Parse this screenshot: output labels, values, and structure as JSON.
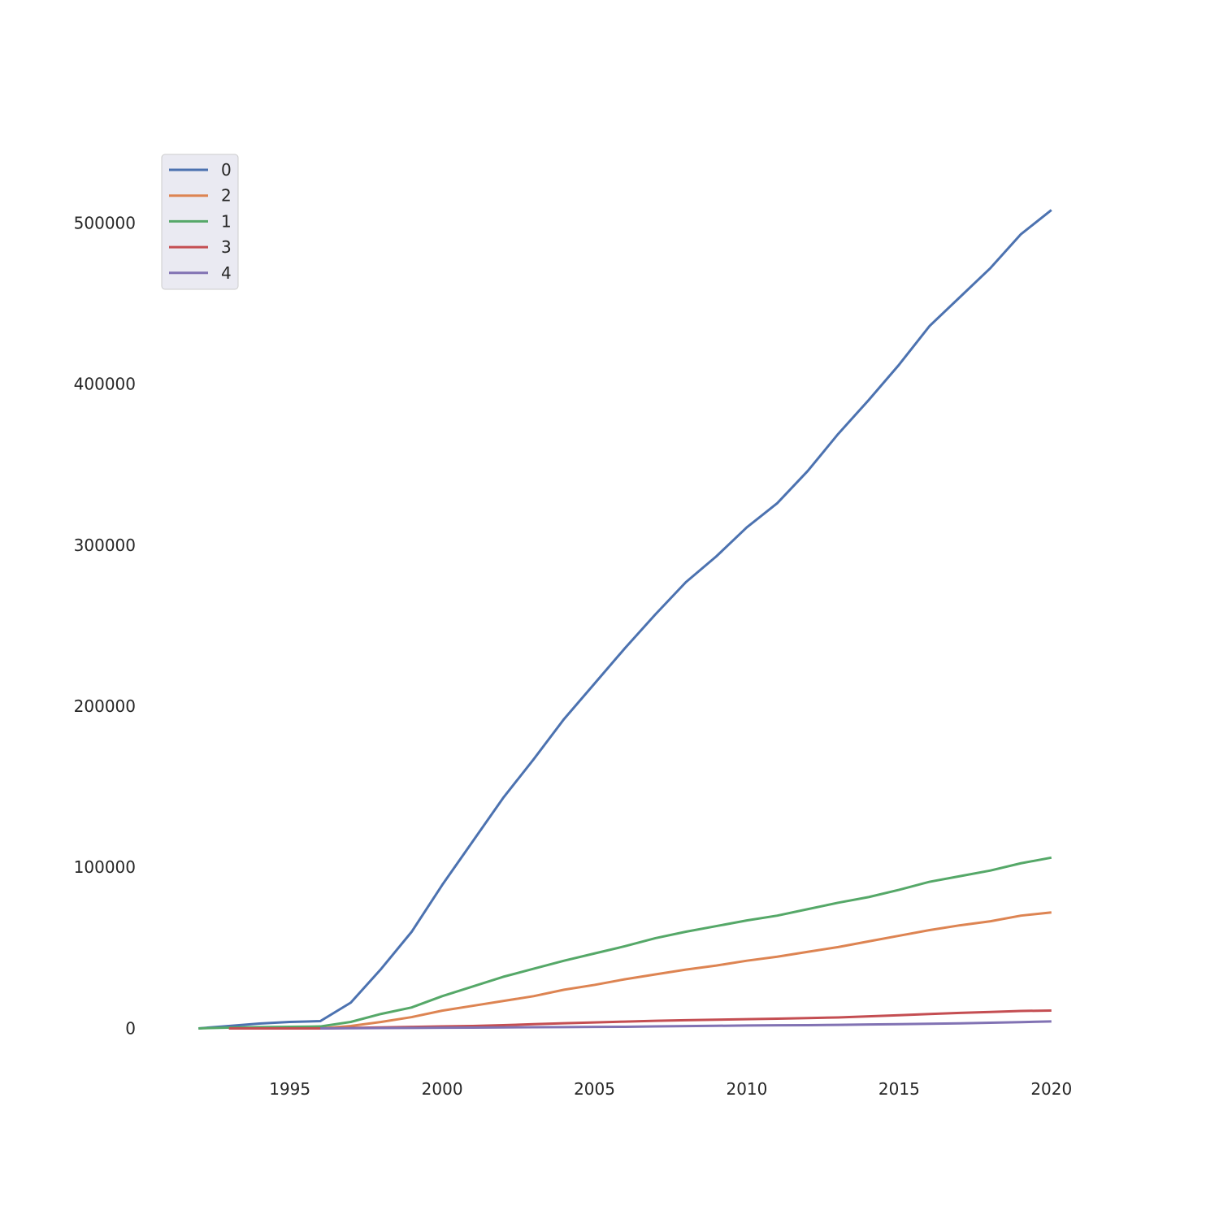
{
  "chart_data": {
    "type": "line",
    "title": "",
    "xlabel": "",
    "ylabel": "",
    "xlim": [
      1990.5,
      2021.5
    ],
    "ylim": [
      -25000,
      540000
    ],
    "x_ticks": [
      1995,
      2000,
      2005,
      2010,
      2015,
      2020
    ],
    "y_ticks": [
      0,
      100000,
      200000,
      300000,
      400000,
      500000
    ],
    "grid": false,
    "legend_position": "top-left",
    "series": [
      {
        "name": "0",
        "color": "#4c72b0",
        "x": [
          1992,
          1993,
          1994,
          1995,
          1996,
          1997,
          1998,
          1999,
          2000,
          2001,
          2002,
          2003,
          2004,
          2005,
          2006,
          2007,
          2008,
          2009,
          2010,
          2011,
          2012,
          2013,
          2014,
          2015,
          2016,
          2017,
          2018,
          2019,
          2020
        ],
        "y": [
          0,
          1500,
          3000,
          4000,
          4500,
          16000,
          37000,
          60000,
          89000,
          116000,
          143000,
          167000,
          192000,
          214000,
          236000,
          257000,
          277000,
          293000,
          311000,
          326000,
          346000,
          369000,
          390000,
          412000,
          436000,
          454000,
          472000,
          493000,
          508000
        ]
      },
      {
        "name": "2",
        "color": "#dd8452",
        "x": [
          1993,
          1994,
          1995,
          1996,
          1997,
          1998,
          1999,
          2000,
          2001,
          2002,
          2003,
          2004,
          2005,
          2006,
          2007,
          2008,
          2009,
          2010,
          2011,
          2012,
          2013,
          2014,
          2015,
          2016,
          2017,
          2018,
          2019,
          2020
        ],
        "y": [
          0,
          0,
          0,
          0,
          1500,
          4000,
          7000,
          11000,
          14000,
          17000,
          20000,
          24000,
          27000,
          30500,
          33500,
          36500,
          39000,
          42000,
          44500,
          47500,
          50500,
          54000,
          57500,
          61000,
          64000,
          66500,
          70000,
          72000
        ]
      },
      {
        "name": "1",
        "color": "#55a868",
        "x": [
          1992,
          1993,
          1994,
          1995,
          1996,
          1997,
          1998,
          1999,
          2000,
          2001,
          2002,
          2003,
          2004,
          2005,
          2006,
          2007,
          2008,
          2009,
          2010,
          2011,
          2012,
          2013,
          2014,
          2015,
          2016,
          2017,
          2018,
          2019,
          2020
        ],
        "y": [
          0,
          500,
          800,
          1000,
          1200,
          4000,
          9000,
          13000,
          20000,
          26000,
          32000,
          37000,
          42000,
          46500,
          51000,
          56000,
          60000,
          63500,
          67000,
          70000,
          74000,
          78000,
          81500,
          86000,
          91000,
          94500,
          98000,
          102500,
          106000
        ]
      },
      {
        "name": "3",
        "color": "#c44e52",
        "x": [
          1993,
          1994,
          1995,
          1996,
          1997,
          1998,
          1999,
          2000,
          2001,
          2002,
          2003,
          2004,
          2005,
          2006,
          2007,
          2008,
          2009,
          2010,
          2011,
          2012,
          2013,
          2014,
          2015,
          2016,
          2017,
          2018,
          2019,
          2020
        ],
        "y": [
          0,
          0,
          0,
          0,
          300,
          600,
          900,
          1200,
          1500,
          2000,
          2600,
          3200,
          3700,
          4200,
          4700,
          5100,
          5400,
          5700,
          6000,
          6400,
          6800,
          7500,
          8200,
          8900,
          9600,
          10200,
          10800,
          11100
        ]
      },
      {
        "name": "4",
        "color": "#8172b3",
        "x": [
          1996,
          1997,
          1998,
          1999,
          2000,
          2001,
          2002,
          2003,
          2004,
          2005,
          2006,
          2007,
          2008,
          2009,
          2010,
          2011,
          2012,
          2013,
          2014,
          2015,
          2016,
          2017,
          2018,
          2019,
          2020
        ],
        "y": [
          0,
          100,
          200,
          300,
          400,
          500,
          600,
          700,
          800,
          900,
          1000,
          1200,
          1400,
          1600,
          1800,
          1900,
          2000,
          2200,
          2400,
          2600,
          2900,
          3100,
          3500,
          3900,
          4300
        ]
      }
    ]
  }
}
